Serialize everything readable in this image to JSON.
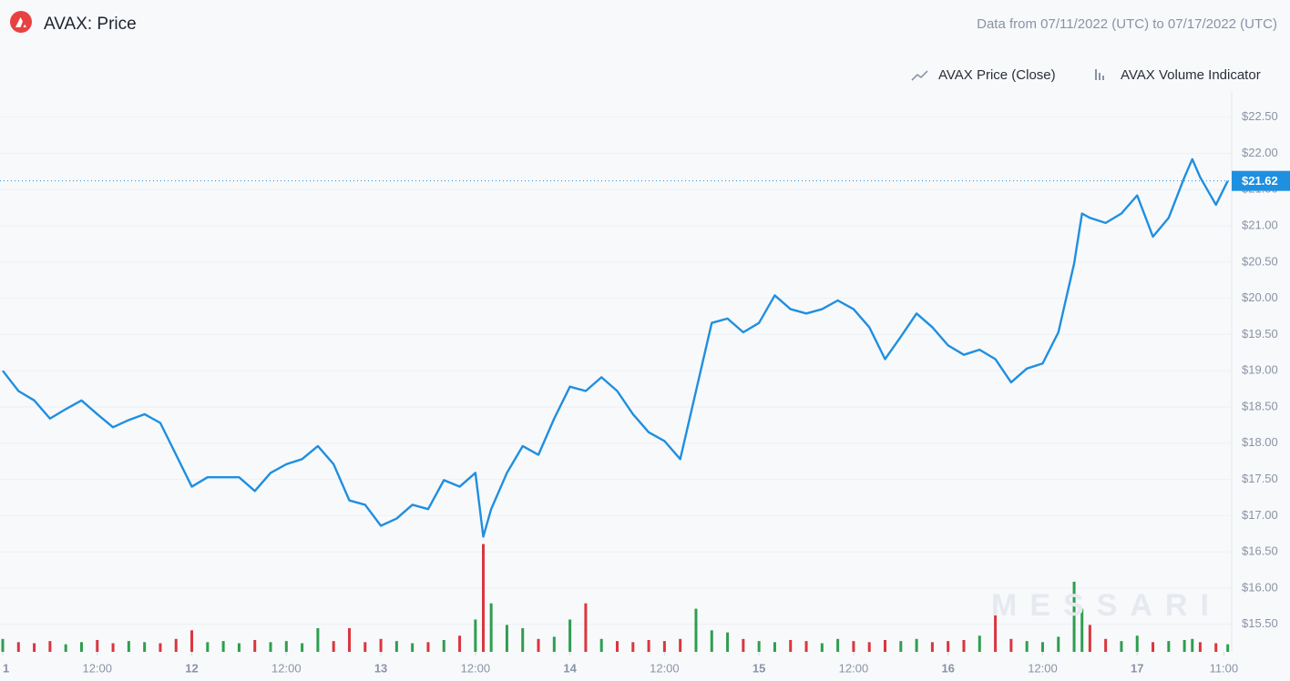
{
  "chart_data": {
    "type": "line",
    "title": "AVAX: Price",
    "subtitle": "Data from 07/11/2022 (UTC) to 07/17/2022 (UTC)",
    "watermark": "MESSARI",
    "x": [
      0,
      2,
      4,
      6,
      8,
      10,
      12,
      14,
      16,
      18,
      20,
      22,
      24,
      26,
      28,
      30,
      32,
      34,
      36,
      38,
      40,
      42,
      44,
      46,
      48,
      50,
      52,
      54,
      56,
      58,
      60,
      61,
      62,
      64,
      66,
      68,
      70,
      72,
      74,
      76,
      78,
      80,
      82,
      84,
      86,
      88,
      90,
      92,
      94,
      96,
      98,
      100,
      102,
      104,
      106,
      108,
      110,
      112,
      114,
      116,
      118,
      120,
      122,
      124,
      126,
      128,
      130,
      132,
      134,
      136,
      137,
      138,
      140,
      142,
      144,
      146,
      148,
      150,
      151,
      152,
      154,
      155.5
    ],
    "series": [
      {
        "name": "AVAX Price (Close)",
        "color": "#1f8fe0",
        "values": [
          19.0,
          18.72,
          18.59,
          18.34,
          18.47,
          18.59,
          18.4,
          18.22,
          18.32,
          18.4,
          18.28,
          17.84,
          17.4,
          17.53,
          17.53,
          17.53,
          17.34,
          17.59,
          17.71,
          17.78,
          17.96,
          17.71,
          17.21,
          17.15,
          16.86,
          16.96,
          17.15,
          17.09,
          17.49,
          17.4,
          17.59,
          16.71,
          17.09,
          17.59,
          17.96,
          17.84,
          18.34,
          18.78,
          18.72,
          18.91,
          18.72,
          18.4,
          18.15,
          18.03,
          17.78,
          18.72,
          19.66,
          19.72,
          19.53,
          19.66,
          20.04,
          19.85,
          19.79,
          19.85,
          19.97,
          19.85,
          19.6,
          19.16,
          19.47,
          19.79,
          19.6,
          19.35,
          19.22,
          19.29,
          19.16,
          18.84,
          19.03,
          19.1,
          19.53,
          20.48,
          21.17,
          21.11,
          21.04,
          21.17,
          21.42,
          20.85,
          21.11,
          21.67,
          21.92,
          21.67,
          21.29,
          21.62
        ]
      },
      {
        "name": "AVAX Volume Indicator",
        "color": "#8a93a5",
        "axis": "y2",
        "up_color": "#2e9e4f",
        "down_color": "#d9363e",
        "values": [
          12,
          9,
          8,
          10,
          7,
          9,
          11,
          8,
          10,
          9,
          8,
          12,
          20,
          9,
          10,
          8,
          11,
          9,
          10,
          8,
          22,
          10,
          22,
          9,
          12,
          10,
          8,
          9,
          11,
          15,
          30,
          100,
          45,
          25,
          22,
          12,
          14,
          30,
          45,
          12,
          10,
          9,
          11,
          10,
          12,
          40,
          20,
          18,
          12,
          10,
          9,
          11,
          10,
          8,
          12,
          10,
          9,
          11,
          10,
          12,
          9,
          10,
          11,
          15,
          35,
          12,
          10,
          9,
          14,
          65,
          40,
          25,
          12,
          10,
          15,
          9,
          10,
          11,
          12,
          9,
          8,
          7
        ]
      }
    ],
    "last_price": {
      "value": 21.62,
      "label": "$21.62"
    },
    "xlim": [
      0,
      156
    ],
    "xticks": [
      {
        "value": 0,
        "label": "1"
      },
      {
        "value": 12,
        "label": "12:00"
      },
      {
        "value": 24,
        "label": "12"
      },
      {
        "value": 36,
        "label": "12:00"
      },
      {
        "value": 48,
        "label": "13"
      },
      {
        "value": 60,
        "label": "12:00"
      },
      {
        "value": 72,
        "label": "14"
      },
      {
        "value": 84,
        "label": "12:00"
      },
      {
        "value": 96,
        "label": "15"
      },
      {
        "value": 108,
        "label": "12:00"
      },
      {
        "value": 120,
        "label": "16"
      },
      {
        "value": 132,
        "label": "12:00"
      },
      {
        "value": 144,
        "label": "17"
      },
      {
        "value": 155,
        "label": "11:00"
      }
    ],
    "ylim": [
      15.12,
      22.86
    ],
    "yticks": [
      {
        "value": 15.5,
        "label": "$15.50"
      },
      {
        "value": 16,
        "label": "$16.00"
      },
      {
        "value": 16.5,
        "label": "$16.50"
      },
      {
        "value": 17,
        "label": "$17.00"
      },
      {
        "value": 17.5,
        "label": "$17.50"
      },
      {
        "value": 18,
        "label": "$18.00"
      },
      {
        "value": 18.5,
        "label": "$18.50"
      },
      {
        "value": 19,
        "label": "$19.00"
      },
      {
        "value": 19.5,
        "label": "$19.50"
      },
      {
        "value": 20,
        "label": "$20.00"
      },
      {
        "value": 20.5,
        "label": "$20.50"
      },
      {
        "value": 21,
        "label": "$21.00"
      },
      {
        "value": 21.5,
        "label": "$21.50"
      },
      {
        "value": 22,
        "label": "$22.00"
      },
      {
        "value": 22.5,
        "label": "$22.50"
      }
    ],
    "y2lim": [
      0,
      520
    ],
    "grid": true
  }
}
